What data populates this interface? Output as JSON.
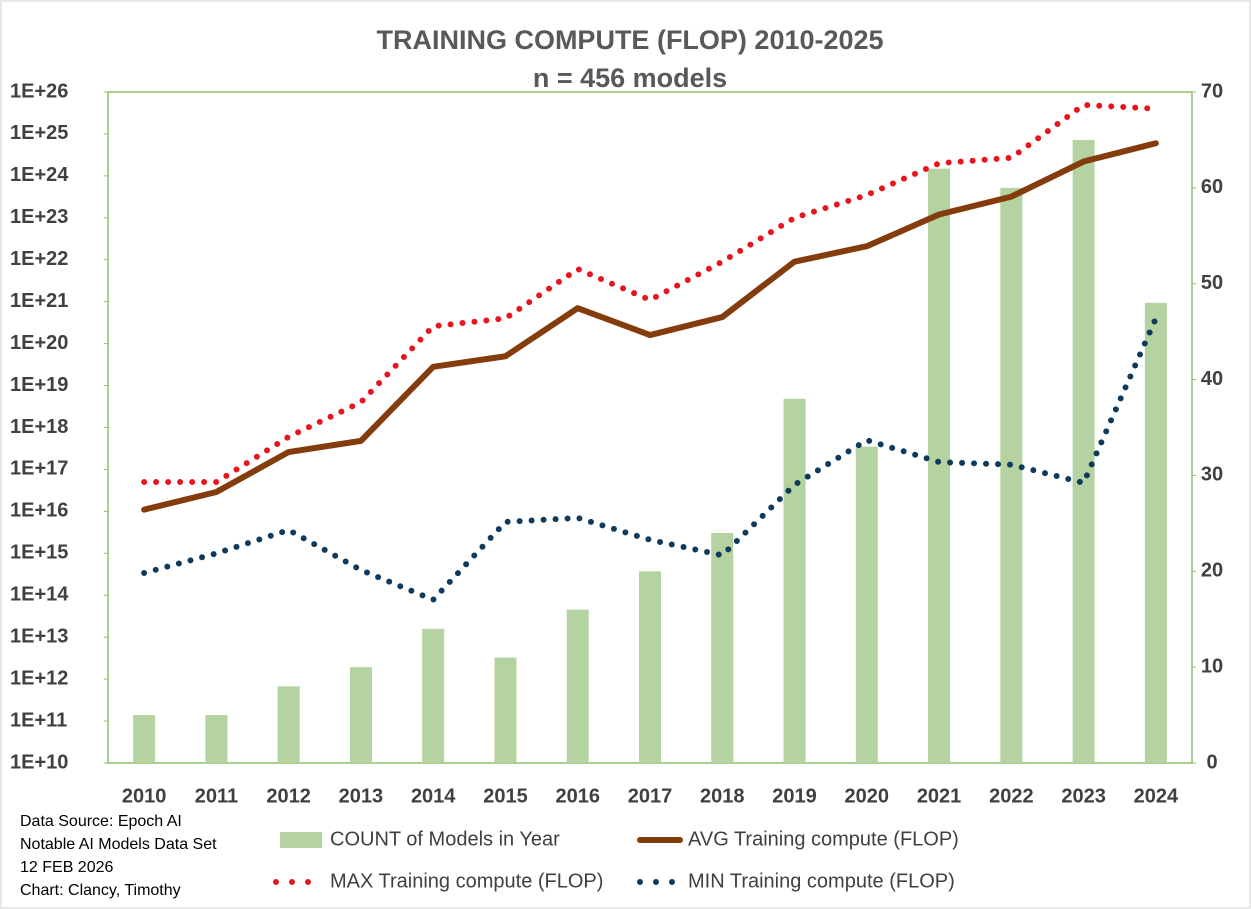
{
  "chart_data": {
    "type": "combo",
    "title": "TRAINING COMPUTE (FLOP) 2010-2025",
    "subtitle": "n = 456 models",
    "notes": [
      "Data Source:  Epoch AI",
      "Notable AI Models Data Set",
      "12 FEB 2026",
      "Chart: Clancy, Timothy"
    ],
    "categories": [
      "2010",
      "2011",
      "2012",
      "2013",
      "2014",
      "2015",
      "2016",
      "2017",
      "2018",
      "2019",
      "2020",
      "2021",
      "2022",
      "2023",
      "2024"
    ],
    "ylog": true,
    "ylim": [
      10000000000.0,
      1e+26
    ],
    "yticks": [
      {
        "value": 10000000000.0,
        "label": "1E+10"
      },
      {
        "value": 100000000000.0,
        "label": "1E+11"
      },
      {
        "value": 1000000000000.0,
        "label": "1E+12"
      },
      {
        "value": 10000000000000.0,
        "label": "1E+13"
      },
      {
        "value": 100000000000000.0,
        "label": "1E+14"
      },
      {
        "value": 1000000000000000.0,
        "label": "1E+15"
      },
      {
        "value": 1e+16,
        "label": "1E+16"
      },
      {
        "value": 1e+17,
        "label": "1E+17"
      },
      {
        "value": 1e+18,
        "label": "1E+18"
      },
      {
        "value": 1e+19,
        "label": "1E+19"
      },
      {
        "value": 1e+20,
        "label": "1E+20"
      },
      {
        "value": 1e+21,
        "label": "1E+21"
      },
      {
        "value": 1e+22,
        "label": "1E+22"
      },
      {
        "value": 1e+23,
        "label": "1E+23"
      },
      {
        "value": 1e+24,
        "label": "1E+24"
      },
      {
        "value": 1e+25,
        "label": "1E+25"
      },
      {
        "value": 1e+26,
        "label": "1E+26"
      }
    ],
    "y2lim": [
      0,
      70
    ],
    "y2ticks": [
      0,
      10,
      20,
      30,
      40,
      50,
      60,
      70
    ],
    "legend": "bottom",
    "series": [
      {
        "name": "COUNT of Models in Year",
        "type": "bar",
        "axis": "y2",
        "color": "#b5d3a0",
        "values": [
          5,
          5,
          8,
          10,
          14,
          11,
          16,
          20,
          24,
          38,
          33,
          62,
          60,
          65,
          48
        ]
      },
      {
        "name": "AVG Training compute (FLOP)",
        "type": "line",
        "line_style": "solid",
        "color": "#843c0c",
        "values": [
          1.1e+16,
          2.9e+16,
          2.6e+17,
          4.8e+17,
          2.8e+19,
          5e+19,
          7e+20,
          1.6e+20,
          4.3e+20,
          9e+21,
          2.1e+22,
          1.2e+23,
          3.2e+23,
          2.2e+24,
          6e+24
        ]
      },
      {
        "name": "MAX Training compute (FLOP)",
        "type": "line",
        "line_style": "dotted",
        "color": "#e8141e",
        "values": [
          5e+16,
          5e+16,
          6e+17,
          4e+18,
          2.6e+20,
          4e+20,
          6e+21,
          1.1e+21,
          9e+21,
          1e+23,
          3.5e+23,
          2e+24,
          2.7e+24,
          4.9e+25,
          4e+25
        ]
      },
      {
        "name": "MIN Training compute (FLOP)",
        "type": "line",
        "line_style": "dotted",
        "color": "#0e3a5e",
        "values": [
          340000000000000.0,
          1000000000000000.0,
          3600000000000000.0,
          400000000000000.0,
          78000000000000.0,
          5600000000000000.0,
          7000000000000000.0,
          2100000000000000.0,
          900000000000000.0,
          4.3e+16,
          5e+17,
          1.5e+17,
          1.3e+17,
          4.8e+16,
          4e+20
        ]
      }
    ]
  }
}
